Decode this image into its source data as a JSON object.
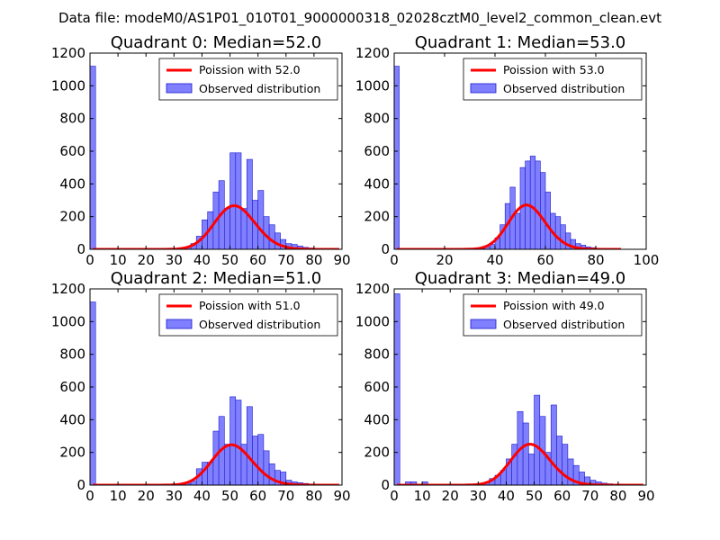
{
  "figure": {
    "suptitle": "Data file: modeM0/AS1P01_010T01_9000000318_02028cztM0_level2_common_clean.evt",
    "colors": {
      "line": "#ff0000",
      "bar_fill": "#8080ff",
      "bar_edge": "#1a1acc"
    }
  },
  "chart_data": [
    {
      "type": "bar",
      "title": "Quadrant 0: Median=52.0",
      "xlim": [
        0,
        90
      ],
      "ylim": [
        0,
        1200
      ],
      "xticks": [
        0,
        10,
        20,
        30,
        40,
        50,
        60,
        70,
        80,
        90
      ],
      "yticks": [
        0,
        200,
        400,
        600,
        800,
        1000,
        1200
      ],
      "legend": {
        "placement": "top-right",
        "line_label": "Poission with 52.0",
        "bar_label": "Observed distribution"
      },
      "bin_width": 2,
      "bars": [
        [
          0,
          1120
        ],
        [
          32,
          5
        ],
        [
          34,
          12
        ],
        [
          36,
          35
        ],
        [
          38,
          80
        ],
        [
          40,
          180
        ],
        [
          42,
          230
        ],
        [
          44,
          350
        ],
        [
          46,
          420
        ],
        [
          48,
          250
        ],
        [
          50,
          590
        ],
        [
          52,
          590
        ],
        [
          54,
          250
        ],
        [
          56,
          550
        ],
        [
          58,
          300
        ],
        [
          60,
          360
        ],
        [
          62,
          200
        ],
        [
          64,
          150
        ],
        [
          66,
          100
        ],
        [
          68,
          60
        ],
        [
          70,
          35
        ],
        [
          72,
          30
        ],
        [
          74,
          20
        ],
        [
          76,
          12
        ],
        [
          78,
          8
        ],
        [
          80,
          5
        ],
        [
          82,
          3
        ]
      ],
      "poisson_mean": 52
    },
    {
      "type": "bar",
      "title": "Quadrant 1: Median=53.0",
      "xlim": [
        0,
        100
      ],
      "ylim": [
        0,
        1200
      ],
      "xticks": [
        0,
        20,
        40,
        60,
        80,
        100
      ],
      "yticks": [
        0,
        200,
        400,
        600,
        800,
        1000,
        1200
      ],
      "legend": {
        "placement": "top-right",
        "line_label": "Poission with 53.0",
        "bar_label": "Observed distribution"
      },
      "bin_width": 2,
      "bars": [
        [
          0,
          1120
        ],
        [
          34,
          5
        ],
        [
          36,
          15
        ],
        [
          38,
          30
        ],
        [
          40,
          70
        ],
        [
          42,
          150
        ],
        [
          44,
          280
        ],
        [
          46,
          380
        ],
        [
          48,
          220
        ],
        [
          50,
          500
        ],
        [
          52,
          540
        ],
        [
          54,
          570
        ],
        [
          56,
          540
        ],
        [
          58,
          470
        ],
        [
          60,
          350
        ],
        [
          62,
          220
        ],
        [
          64,
          200
        ],
        [
          66,
          150
        ],
        [
          68,
          100
        ],
        [
          70,
          60
        ],
        [
          72,
          35
        ],
        [
          74,
          25
        ],
        [
          76,
          15
        ],
        [
          78,
          10
        ],
        [
          80,
          5
        ],
        [
          82,
          3
        ],
        [
          84,
          2
        ]
      ],
      "poisson_mean": 53
    },
    {
      "type": "bar",
      "title": "Quadrant 2: Median=51.0",
      "xlim": [
        0,
        90
      ],
      "ylim": [
        0,
        1200
      ],
      "xticks": [
        0,
        10,
        20,
        30,
        40,
        50,
        60,
        70,
        80,
        90
      ],
      "yticks": [
        0,
        200,
        400,
        600,
        800,
        1000,
        1200
      ],
      "legend": {
        "placement": "top-right",
        "line_label": "Poission with 51.0",
        "bar_label": "Observed distribution"
      },
      "bin_width": 2,
      "bars": [
        [
          0,
          1120
        ],
        [
          8,
          5
        ],
        [
          34,
          10
        ],
        [
          36,
          25
        ],
        [
          38,
          100
        ],
        [
          40,
          140
        ],
        [
          42,
          140
        ],
        [
          44,
          330
        ],
        [
          46,
          420
        ],
        [
          48,
          250
        ],
        [
          50,
          540
        ],
        [
          52,
          520
        ],
        [
          54,
          250
        ],
        [
          56,
          480
        ],
        [
          58,
          300
        ],
        [
          60,
          310
        ],
        [
          62,
          210
        ],
        [
          64,
          130
        ],
        [
          66,
          90
        ],
        [
          68,
          80
        ],
        [
          70,
          30
        ],
        [
          72,
          20
        ],
        [
          74,
          15
        ],
        [
          76,
          10
        ],
        [
          78,
          5
        ],
        [
          80,
          3
        ]
      ],
      "poisson_mean": 51
    },
    {
      "type": "bar",
      "title": "Quadrant 3: Median=49.0",
      "xlim": [
        0,
        90
      ],
      "ylim": [
        0,
        1200
      ],
      "xticks": [
        0,
        10,
        20,
        30,
        40,
        50,
        60,
        70,
        80,
        90
      ],
      "yticks": [
        0,
        200,
        400,
        600,
        800,
        1000,
        1200
      ],
      "legend": {
        "placement": "top-right",
        "line_label": "Poission with 49.0",
        "bar_label": "Observed distribution"
      },
      "bin_width": 2,
      "bars": [
        [
          0,
          1170
        ],
        [
          4,
          20
        ],
        [
          6,
          20
        ],
        [
          10,
          20
        ],
        [
          32,
          15
        ],
        [
          34,
          40
        ],
        [
          36,
          60
        ],
        [
          38,
          90
        ],
        [
          40,
          160
        ],
        [
          42,
          250
        ],
        [
          44,
          450
        ],
        [
          46,
          380
        ],
        [
          48,
          190
        ],
        [
          50,
          550
        ],
        [
          52,
          420
        ],
        [
          54,
          200
        ],
        [
          56,
          490
        ],
        [
          58,
          300
        ],
        [
          60,
          250
        ],
        [
          62,
          160
        ],
        [
          64,
          120
        ],
        [
          66,
          80
        ],
        [
          68,
          50
        ],
        [
          70,
          30
        ],
        [
          72,
          20
        ],
        [
          74,
          12
        ],
        [
          76,
          8
        ],
        [
          78,
          4
        ]
      ],
      "poisson_mean": 49
    }
  ]
}
